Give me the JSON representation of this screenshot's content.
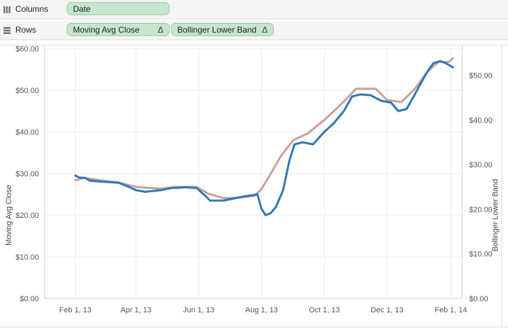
{
  "shelves": {
    "columns": {
      "label": "Columns",
      "pills": [
        "Date"
      ]
    },
    "rows": {
      "label": "Rows",
      "pills": [
        "Moving Avg Close",
        "Bollinger Lower Band"
      ],
      "pill_marker": "Δ"
    }
  },
  "colors": {
    "moving_avg": "#2f78b5",
    "bollinger": "#c9a097",
    "pill_fill": "#c6e5cf"
  },
  "chart_data": {
    "type": "line",
    "grid": true,
    "ylabel": "Moving Avg Close",
    "y2label": "Bollinger Lower Band",
    "xlim": [
      "2013-01-02",
      "2014-02-12"
    ],
    "ylim": [
      0,
      60
    ],
    "y2lim": [
      0,
      56
    ],
    "x_ticks": [
      "2013-02-01",
      "2013-04-01",
      "2013-06-01",
      "2013-08-01",
      "2013-10-01",
      "2013-12-01",
      "2014-02-01"
    ],
    "x_tick_labels": [
      "Feb 1, 13",
      "Apr 1, 13",
      "Jun 1, 13",
      "Aug 1, 13",
      "Oct 1, 13",
      "Dec 1, 13",
      "Feb 1, 14"
    ],
    "y_ticks": [
      0,
      10,
      20,
      30,
      40,
      50,
      60
    ],
    "y_tick_labels": [
      "$0.00",
      "$10.00",
      "$20.00",
      "$30.00",
      "$40.00",
      "$50.00",
      "$60.00"
    ],
    "y2_ticks": [
      0,
      10,
      20,
      30,
      40,
      50
    ],
    "y2_tick_labels": [
      "$0.00",
      "$10.00",
      "$20.00",
      "$30.00",
      "$40.00",
      "$50.00"
    ],
    "series": [
      {
        "name": "Moving Avg Close",
        "axis": "left",
        "points": [
          [
            "2013-02-01",
            29.5
          ],
          [
            "2013-02-05",
            29.0
          ],
          [
            "2013-02-10",
            29.0
          ],
          [
            "2013-02-15",
            28.3
          ],
          [
            "2013-03-01",
            28.0
          ],
          [
            "2013-03-15",
            27.8
          ],
          [
            "2013-03-25",
            26.8
          ],
          [
            "2013-04-01",
            26.0
          ],
          [
            "2013-04-10",
            25.6
          ],
          [
            "2013-04-25",
            26.0
          ],
          [
            "2013-05-05",
            26.5
          ],
          [
            "2013-05-20",
            26.7
          ],
          [
            "2013-05-30",
            26.5
          ],
          [
            "2013-06-08",
            24.5
          ],
          [
            "2013-06-12",
            23.5
          ],
          [
            "2013-06-25",
            23.5
          ],
          [
            "2013-07-05",
            24.0
          ],
          [
            "2013-07-15",
            24.5
          ],
          [
            "2013-07-28",
            25.0
          ],
          [
            "2013-08-01",
            21.5
          ],
          [
            "2013-08-05",
            20.0
          ],
          [
            "2013-08-10",
            20.5
          ],
          [
            "2013-08-15",
            22.0
          ],
          [
            "2013-08-22",
            26.0
          ],
          [
            "2013-08-28",
            33.0
          ],
          [
            "2013-09-02",
            37.0
          ],
          [
            "2013-09-10",
            37.5
          ],
          [
            "2013-09-20",
            37.0
          ],
          [
            "2013-10-01",
            40.0
          ],
          [
            "2013-10-10",
            42.0
          ],
          [
            "2013-10-20",
            45.0
          ],
          [
            "2013-10-28",
            48.5
          ],
          [
            "2013-11-05",
            49.0
          ],
          [
            "2013-11-15",
            48.8
          ],
          [
            "2013-11-25",
            47.5
          ],
          [
            "2013-12-05",
            47.0
          ],
          [
            "2013-12-12",
            45.0
          ],
          [
            "2013-12-20",
            45.5
          ],
          [
            "2013-12-28",
            49.0
          ],
          [
            "2014-01-08",
            54.0
          ],
          [
            "2014-01-15",
            56.5
          ],
          [
            "2014-01-22",
            57.0
          ],
          [
            "2014-01-27",
            56.5
          ],
          [
            "2014-02-03",
            55.5
          ]
        ]
      },
      {
        "name": "Bollinger Lower Band",
        "axis": "right",
        "points": [
          [
            "2013-02-01",
            26.5
          ],
          [
            "2013-02-10",
            27.0
          ],
          [
            "2013-02-25",
            26.5
          ],
          [
            "2013-03-15",
            26.0
          ],
          [
            "2013-04-01",
            25.0
          ],
          [
            "2013-04-25",
            24.6
          ],
          [
            "2013-05-10",
            25.0
          ],
          [
            "2013-05-30",
            25.0
          ],
          [
            "2013-06-10",
            23.5
          ],
          [
            "2013-06-25",
            22.5
          ],
          [
            "2013-07-10",
            22.6
          ],
          [
            "2013-07-25",
            23.0
          ],
          [
            "2013-08-01",
            24.5
          ],
          [
            "2013-08-10",
            28.0
          ],
          [
            "2013-08-20",
            32.0
          ],
          [
            "2013-09-01",
            35.5
          ],
          [
            "2013-09-15",
            37.0
          ],
          [
            "2013-10-01",
            40.0
          ],
          [
            "2013-10-15",
            43.0
          ],
          [
            "2013-11-01",
            47.0
          ],
          [
            "2013-11-20",
            47.0
          ],
          [
            "2013-12-01",
            44.5
          ],
          [
            "2013-12-15",
            44.0
          ],
          [
            "2013-12-28",
            47.0
          ],
          [
            "2014-01-10",
            51.0
          ],
          [
            "2014-01-20",
            53.0
          ],
          [
            "2014-01-30",
            53.0
          ],
          [
            "2014-02-03",
            53.8
          ]
        ]
      }
    ]
  }
}
